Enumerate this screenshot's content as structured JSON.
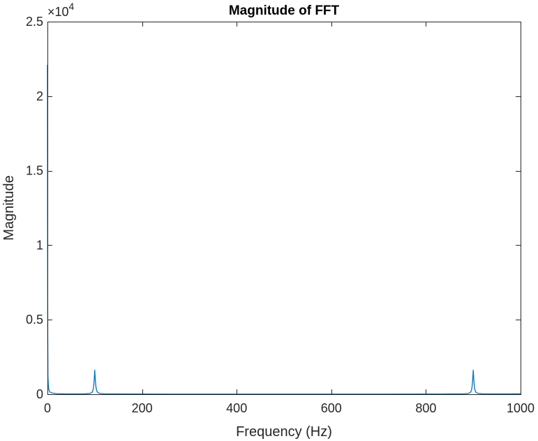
{
  "chart_data": {
    "type": "line",
    "title": "Magnitude of FFT",
    "xlabel": "Frequency (Hz)",
    "ylabel": "Magnitude",
    "xlim": [
      0,
      1000
    ],
    "ylim": [
      0,
      25000
    ],
    "y_exponent_label": "×10",
    "y_exponent_power": "4",
    "x_ticks": [
      0,
      200,
      400,
      600,
      800,
      1000
    ],
    "x_tick_labels": [
      "0",
      "200",
      "400",
      "600",
      "800",
      "1000"
    ],
    "y_ticks": [
      0,
      5000,
      10000,
      15000,
      20000,
      25000
    ],
    "y_tick_labels": [
      "0",
      "0.5",
      "1",
      "1.5",
      "2",
      "2.5"
    ],
    "grid": false,
    "box": true,
    "line_color": "#0072BD",
    "series": [
      {
        "points": [
          [
            0,
            22100
          ],
          [
            0.3,
            12000
          ],
          [
            0.6,
            4200
          ],
          [
            1,
            1200
          ],
          [
            2,
            500
          ],
          [
            3,
            300
          ],
          [
            5,
            150
          ],
          [
            10,
            80
          ],
          [
            20,
            40
          ],
          [
            40,
            25
          ],
          [
            60,
            20
          ],
          [
            80,
            30
          ],
          [
            90,
            60
          ],
          [
            94,
            120
          ],
          [
            96,
            250
          ],
          [
            97,
            380
          ],
          [
            98,
            650
          ],
          [
            99,
            1050
          ],
          [
            99.6,
            1400
          ],
          [
            100,
            1620
          ],
          [
            100.4,
            1400
          ],
          [
            101,
            1050
          ],
          [
            102,
            650
          ],
          [
            103,
            380
          ],
          [
            104,
            250
          ],
          [
            106,
            120
          ],
          [
            110,
            60
          ],
          [
            120,
            30
          ],
          [
            150,
            20
          ],
          [
            200,
            15
          ],
          [
            300,
            12
          ],
          [
            400,
            10
          ],
          [
            500,
            10
          ],
          [
            600,
            10
          ],
          [
            700,
            12
          ],
          [
            800,
            15
          ],
          [
            850,
            20
          ],
          [
            880,
            30
          ],
          [
            890,
            60
          ],
          [
            894,
            120
          ],
          [
            896,
            250
          ],
          [
            897,
            380
          ],
          [
            898,
            650
          ],
          [
            899,
            1050
          ],
          [
            899.6,
            1400
          ],
          [
            900,
            1620
          ],
          [
            900.4,
            1400
          ],
          [
            901,
            1050
          ],
          [
            902,
            650
          ],
          [
            903,
            380
          ],
          [
            904,
            250
          ],
          [
            906,
            120
          ],
          [
            910,
            60
          ],
          [
            920,
            30
          ],
          [
            940,
            25
          ],
          [
            960,
            20
          ],
          [
            980,
            25
          ],
          [
            1000,
            30
          ]
        ]
      }
    ]
  }
}
